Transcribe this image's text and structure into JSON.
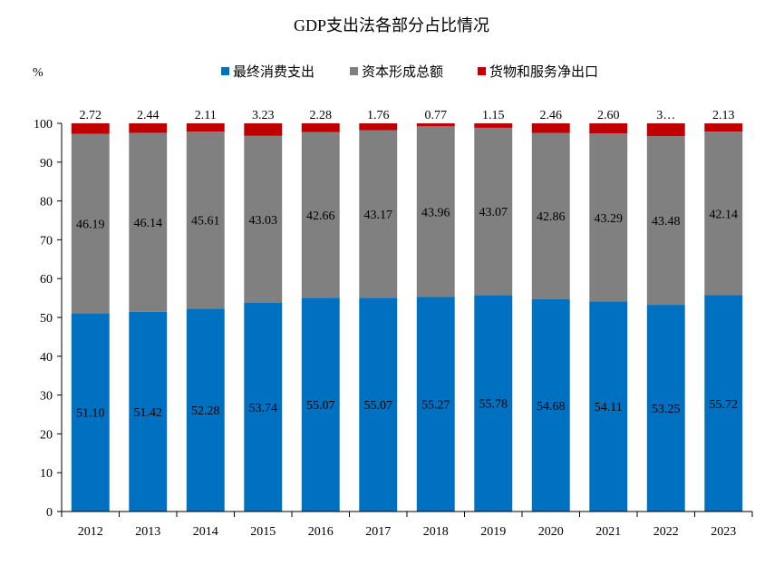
{
  "chart_data": {
    "type": "bar",
    "stacked": true,
    "title": "GDP支出法各部分占比情况",
    "ylabel": "%",
    "xlabel": "",
    "ylim": [
      0,
      100
    ],
    "yticks": [
      "0",
      "10",
      "20",
      "30",
      "40",
      "50",
      "60",
      "70",
      "80",
      "90",
      "100"
    ],
    "categories": [
      "2012",
      "2013",
      "2014",
      "2015",
      "2016",
      "2017",
      "2018",
      "2019",
      "2020",
      "2021",
      "2022",
      "2023"
    ],
    "legend_position": "top",
    "series": [
      {
        "name": "最终消费支出",
        "color": "#0070c0",
        "values": [
          51.1,
          51.42,
          52.28,
          53.74,
          55.07,
          55.07,
          55.27,
          55.78,
          54.68,
          54.11,
          53.25,
          55.72
        ],
        "labels": [
          "51.10",
          "51.42",
          "52.28",
          "53.74",
          "55.07",
          "55.07",
          "55.27",
          "55.78",
          "54.68",
          "54.11",
          "53.25",
          "55.72"
        ]
      },
      {
        "name": "资本形成总额",
        "color": "#808080",
        "values": [
          46.19,
          46.14,
          45.61,
          43.03,
          42.66,
          43.17,
          43.96,
          43.07,
          42.86,
          43.29,
          43.48,
          42.14
        ],
        "labels": [
          "46.19",
          "46.14",
          "45.61",
          "43.03",
          "42.66",
          "43.17",
          "43.96",
          "43.07",
          "42.86",
          "43.29",
          "43.48",
          "42.14"
        ]
      },
      {
        "name": "货物和服务净出口",
        "color": "#c00000",
        "values": [
          2.72,
          2.44,
          2.11,
          3.23,
          2.28,
          1.76,
          0.77,
          1.15,
          2.46,
          2.6,
          3.27,
          2.13
        ],
        "labels": [
          "2.72",
          "2.44",
          "2.11",
          "3.23",
          "2.28",
          "1.76",
          "0.77",
          "1.15",
          "2.46",
          "2.60",
          "3…",
          "2.13"
        ]
      }
    ]
  }
}
